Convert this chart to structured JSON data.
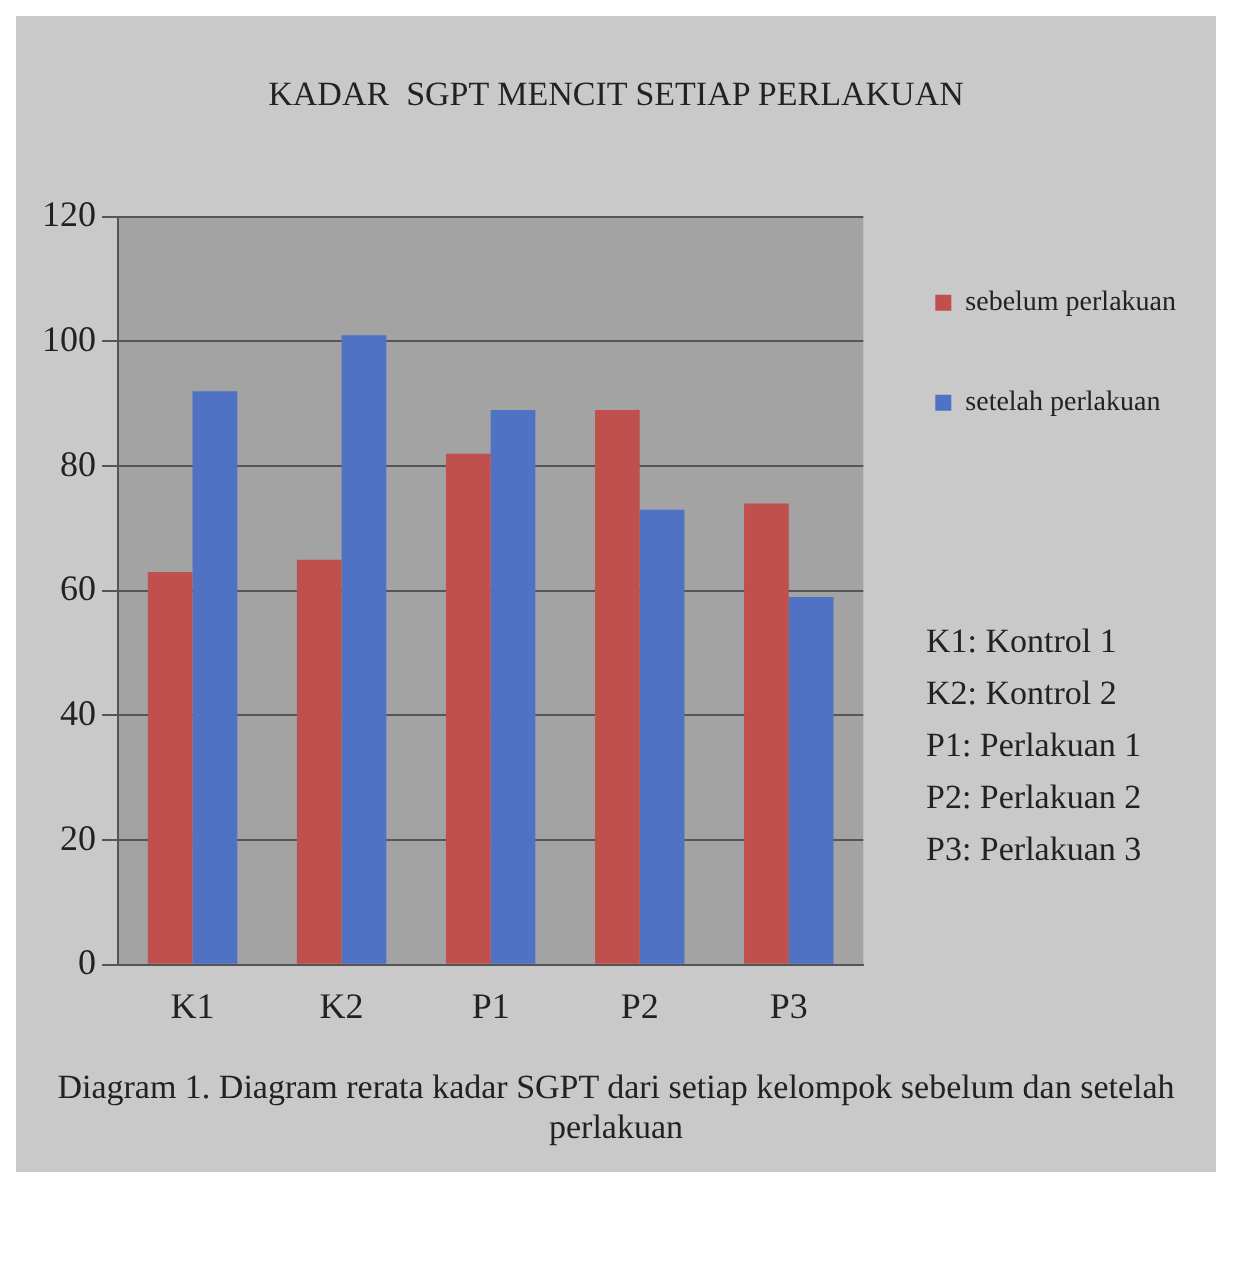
{
  "chart_data": {
    "type": "bar",
    "title": "KADAR  SGPT MENCIT SETIAP PERLAKUAN",
    "categories": [
      "K1",
      "K2",
      "P1",
      "P2",
      "P3"
    ],
    "series": [
      {
        "name": "sebelum perlakuan",
        "color": "#c0504d",
        "values": [
          63,
          65,
          82,
          89,
          74
        ]
      },
      {
        "name": "setelah perlakuan",
        "color": "#4f72c4",
        "values": [
          92,
          101,
          89,
          73,
          59
        ]
      }
    ],
    "ylim": [
      0,
      120
    ],
    "yticks": [
      0,
      20,
      40,
      60,
      80,
      100,
      120
    ],
    "grid": "y",
    "legend": "right",
    "annotations": [
      "K1: Kontrol 1",
      "K2: Kontrol 2",
      "P1: Perlakuan 1",
      "P2: Perlakuan 2",
      "P3: Perlakuan 3",
      "Diagram 1. Diagram rerata kadar SGPT dari setiap kelompok sebelum dan setelah perlakuan"
    ]
  }
}
